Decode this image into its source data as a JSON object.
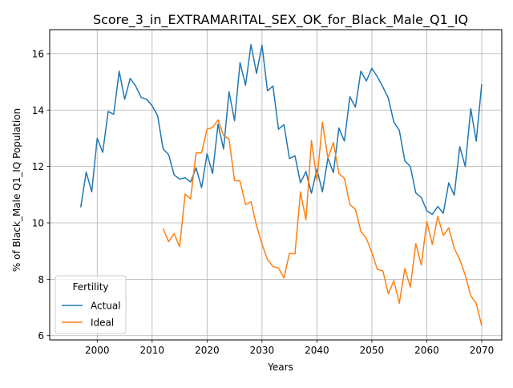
{
  "chart_data": {
    "type": "line",
    "title": "Score_3_in_EXTRAMARITAL_SEX_OK_for_Black_Male_Q1_IQ",
    "xlabel": "Years",
    "ylabel": "% of Black_Male Q1_IQ Population",
    "xlim": [
      1991.35,
      2073.65
    ],
    "ylim": [
      5.85,
      16.85
    ],
    "xticks": [
      2000,
      2010,
      2020,
      2030,
      2040,
      2050,
      2060,
      2070
    ],
    "yticks": [
      6,
      8,
      10,
      12,
      14,
      16
    ],
    "grid": true,
    "legend": {
      "title": "Fertility",
      "placement": "lower-left"
    },
    "series": [
      {
        "name": "Actual",
        "color": "#1f77b4",
        "x": [
          1997,
          1998,
          1999,
          2000,
          2001,
          2002,
          2003,
          2004,
          2005,
          2006,
          2007,
          2008,
          2009,
          2010,
          2011,
          2012,
          2013,
          2014,
          2015,
          2016,
          2017,
          2018,
          2019,
          2020,
          2021,
          2022,
          2023,
          2024,
          2025,
          2026,
          2027,
          2028,
          2029,
          2030,
          2031,
          2032,
          2033,
          2034,
          2035,
          2036,
          2037,
          2038,
          2039,
          2040,
          2041,
          2042,
          2043,
          2044,
          2045,
          2046,
          2047,
          2048,
          2049,
          2050,
          2051,
          2052,
          2053,
          2054,
          2055,
          2056,
          2057,
          2058,
          2059,
          2060,
          2061,
          2062,
          2063,
          2064,
          2065,
          2066,
          2067,
          2068,
          2069,
          2070
        ],
        "values": [
          10.55,
          11.8,
          11.1,
          13.0,
          12.5,
          13.95,
          13.85,
          15.38,
          14.38,
          15.12,
          14.85,
          14.45,
          14.38,
          14.15,
          13.8,
          12.62,
          12.42,
          11.7,
          11.55,
          11.6,
          11.45,
          11.95,
          11.25,
          12.45,
          11.75,
          13.5,
          12.62,
          14.65,
          13.62,
          15.68,
          14.88,
          16.32,
          15.3,
          16.3,
          14.68,
          14.85,
          13.32,
          13.48,
          12.28,
          12.38,
          11.42,
          11.82,
          11.05,
          11.9,
          11.1,
          12.3,
          11.78,
          13.36,
          12.9,
          14.47,
          14.1,
          15.38,
          15.03,
          15.48,
          15.18,
          14.82,
          14.42,
          13.57,
          13.28,
          12.2,
          12.0,
          11.06,
          10.9,
          10.43,
          10.3,
          10.58,
          10.34,
          11.42,
          10.98,
          12.7,
          12.0,
          14.05,
          12.9,
          14.92
        ]
      },
      {
        "name": "Ideal",
        "color": "#ff7f0e",
        "x": [
          2012,
          2013,
          2014,
          2015,
          2016,
          2017,
          2018,
          2019,
          2020,
          2021,
          2022,
          2023,
          2024,
          2025,
          2026,
          2027,
          2028,
          2029,
          2030,
          2031,
          2032,
          2033,
          2034,
          2035,
          2036,
          2037,
          2038,
          2039,
          2040,
          2041,
          2042,
          2043,
          2044,
          2045,
          2046,
          2047,
          2048,
          2049,
          2050,
          2051,
          2052,
          2053,
          2054,
          2055,
          2056,
          2057,
          2058,
          2059,
          2060,
          2061,
          2062,
          2063,
          2064,
          2065,
          2066,
          2067,
          2068,
          2069,
          2070
        ],
        "values": [
          9.8,
          9.33,
          9.62,
          9.15,
          11.02,
          10.85,
          12.48,
          12.48,
          13.32,
          13.38,
          13.65,
          13.1,
          12.97,
          11.5,
          11.48,
          10.65,
          10.75,
          9.9,
          9.25,
          8.7,
          8.45,
          8.4,
          8.05,
          8.92,
          8.9,
          11.1,
          10.1,
          12.92,
          11.5,
          13.57,
          12.3,
          12.85,
          11.75,
          11.58,
          10.65,
          10.48,
          9.7,
          9.45,
          8.95,
          8.35,
          8.3,
          7.48,
          7.95,
          7.15,
          8.38,
          7.72,
          9.26,
          8.5,
          10.05,
          9.23,
          10.23,
          9.55,
          9.82,
          9.1,
          8.7,
          8.15,
          7.42,
          7.15,
          6.35
        ]
      }
    ]
  }
}
